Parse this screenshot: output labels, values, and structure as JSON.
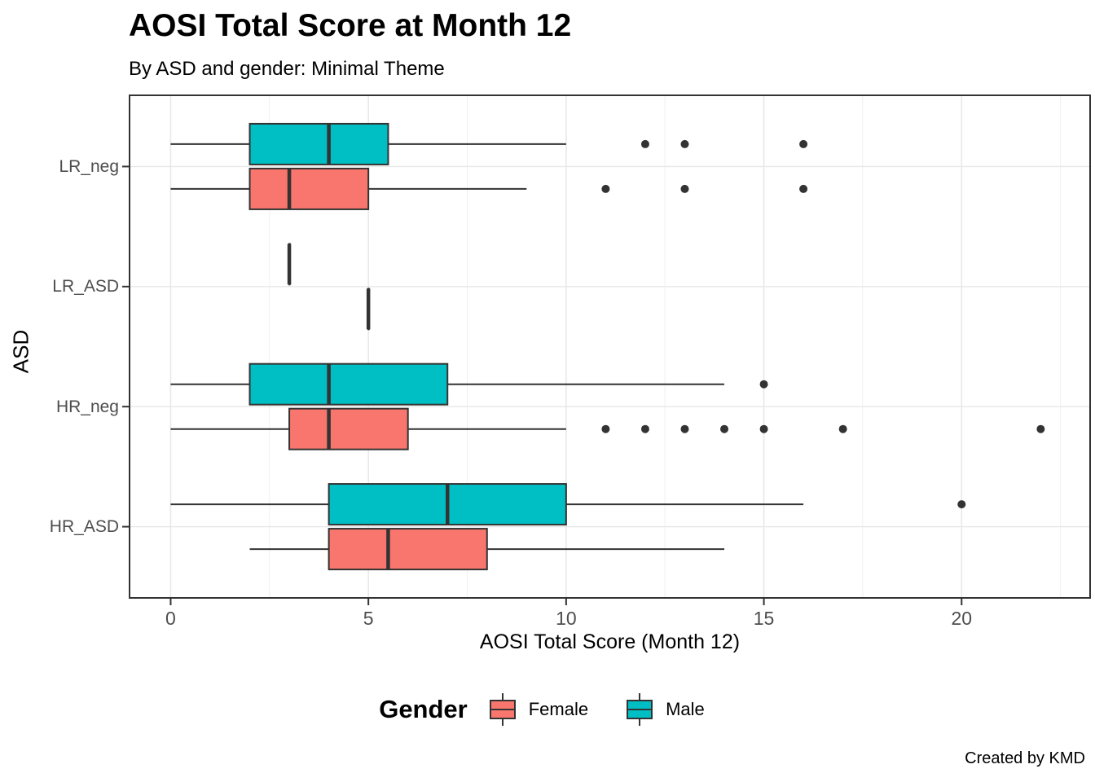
{
  "chart_data": {
    "type": "boxplot",
    "orientation": "horizontal",
    "title": "AOSI Total Score at Month 12",
    "subtitle": "By ASD and gender: Minimal Theme",
    "caption": "Created by KMD",
    "xlabel": "AOSI Total Score (Month 12)",
    "ylabel": "ASD",
    "xlim": [
      -1.06,
      23.27
    ],
    "x_ticks": [
      0,
      5,
      10,
      15,
      20
    ],
    "x_minor_step": 2.5,
    "grid": "on",
    "categories_top_to_bottom": [
      "LR_neg",
      "LR_ASD",
      "HR_neg",
      "HR_ASD"
    ],
    "legend": {
      "title": "Gender",
      "position": "bottom",
      "entries": [
        {
          "label": "Female",
          "color": "#F8766D"
        },
        {
          "label": "Male",
          "color": "#00BFC4"
        }
      ]
    },
    "groups": [
      {
        "category": "LR_neg",
        "boxes": [
          {
            "gender": "Male",
            "color": "#00BFC4",
            "lo": 0,
            "q1": 2,
            "median": 4,
            "q3": 5.5,
            "hi": 10,
            "outliers": [
              12,
              13,
              16
            ]
          },
          {
            "gender": "Female",
            "color": "#F8766D",
            "lo": 0,
            "q1": 2,
            "median": 3,
            "q3": 5,
            "hi": 9,
            "outliers": [
              11,
              13,
              16
            ]
          }
        ]
      },
      {
        "category": "LR_ASD",
        "boxes": [
          {
            "gender": "Male",
            "color": "#00BFC4",
            "lo": 3,
            "q1": 3,
            "median": 3,
            "q3": 3,
            "hi": 3,
            "outliers": []
          },
          {
            "gender": "Female",
            "color": "#F8766D",
            "lo": 5,
            "q1": 5,
            "median": 5,
            "q3": 5,
            "hi": 5,
            "outliers": []
          }
        ]
      },
      {
        "category": "HR_neg",
        "boxes": [
          {
            "gender": "Male",
            "color": "#00BFC4",
            "lo": 0,
            "q1": 2,
            "median": 4,
            "q3": 7,
            "hi": 14,
            "outliers": [
              15
            ]
          },
          {
            "gender": "Female",
            "color": "#F8766D",
            "lo": 0,
            "q1": 3,
            "median": 4,
            "q3": 6,
            "hi": 10,
            "outliers": [
              11,
              12,
              13,
              14,
              15,
              17,
              22
            ]
          }
        ]
      },
      {
        "category": "HR_ASD",
        "boxes": [
          {
            "gender": "Male",
            "color": "#00BFC4",
            "lo": 0,
            "q1": 4,
            "median": 7,
            "q3": 10,
            "hi": 16,
            "outliers": [
              20
            ]
          },
          {
            "gender": "Female",
            "color": "#F8766D",
            "lo": 2,
            "q1": 4,
            "median": 5.5,
            "q3": 8,
            "hi": 14,
            "outliers": []
          }
        ]
      }
    ],
    "colors": {
      "female": "#F8766D",
      "male": "#00BFC4",
      "box_border": "#333333",
      "outlier": "#333333",
      "panel_border": "#333333",
      "grid_major": "#e7e7e7",
      "grid_minor": "#f0f0f0",
      "tick": "#333333",
      "axis_text": "#4d4d4d"
    }
  }
}
